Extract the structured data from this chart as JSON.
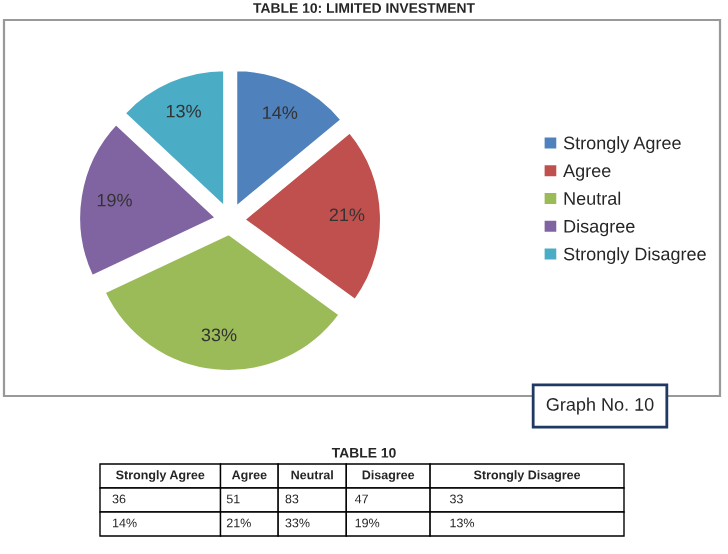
{
  "chart_data": [
    {
      "type": "pie",
      "title": "TABLE 10: LIMITED INVESTMENT",
      "categories": [
        "Strongly Agree",
        "Agree",
        "Neutral",
        "Disagree",
        "Strongly Disagree"
      ],
      "values": [
        14,
        21,
        33,
        19,
        13
      ],
      "value_labels": [
        "14%",
        "21%",
        "33%",
        "19%",
        "13%"
      ],
      "colors": [
        "#4f81bd",
        "#c0504d",
        "#9bbb59",
        "#8064a2",
        "#4bacc6"
      ],
      "legend": "right",
      "data_labels": true,
      "annotations": [
        "Graph No. 10"
      ]
    },
    {
      "type": "other",
      "title": "TABLE 10",
      "categories": [
        "Strongly Agree",
        "Agree",
        "Neutral",
        "Disagree",
        "Strongly Disagree"
      ],
      "values": [
        36,
        51,
        83,
        47,
        33
      ],
      "data_labels": true,
      "annotations": [
        "14%",
        "21%",
        "33%",
        "19%",
        "13%"
      ]
    }
  ]
}
